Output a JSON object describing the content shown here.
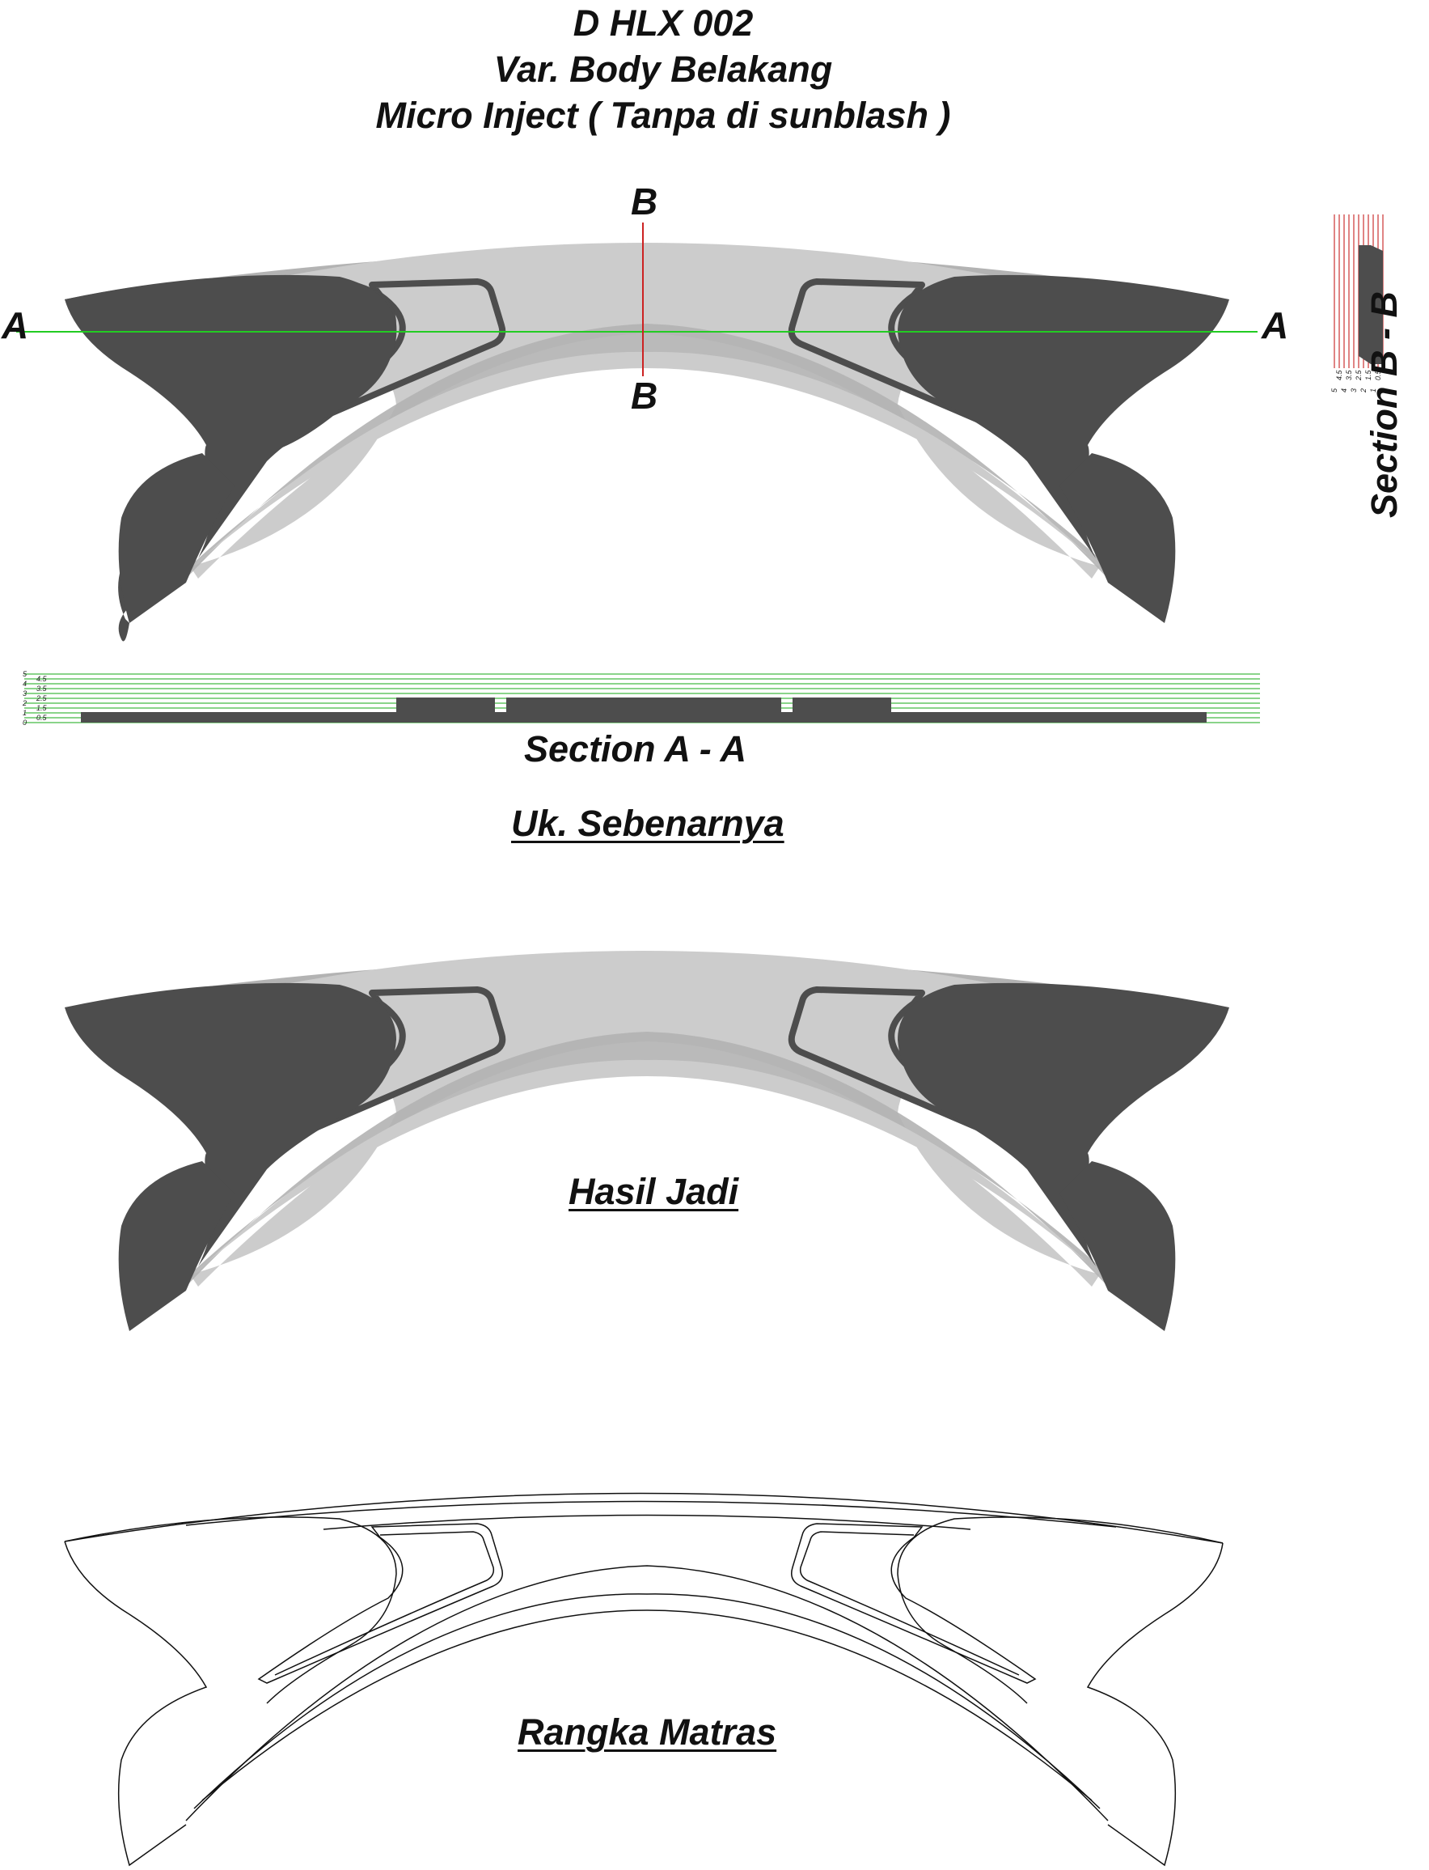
{
  "title": {
    "line1": "D HLX 002",
    "line2": "Var. Body Belakang",
    "line3": "Micro Inject ( Tanpa di sunblash )"
  },
  "markers": {
    "a_left": "A",
    "a_right": "A",
    "b_top": "B",
    "b_bottom": "B"
  },
  "sections": {
    "section_aa": "Section A - A",
    "section_bb": "Section B - B",
    "scale_labels": [
      "0",
      "0.5",
      "1",
      "1.5",
      "2",
      "2.5",
      "3",
      "3.5",
      "4",
      "4.5",
      "5"
    ]
  },
  "captions": {
    "actual_size": "Uk. Sebenarnya",
    "result": "Hasil Jadi",
    "mold_frame": "Rangka Matras"
  },
  "colors": {
    "dark_body": "#4d4d4d",
    "light_fill": "#cccccc",
    "mid_fill": "#b3b3b3",
    "section_line_a": "#22cc22",
    "section_line_b": "#cc2222",
    "scale_green": "#44bb44",
    "scale_red": "#cc3333"
  }
}
